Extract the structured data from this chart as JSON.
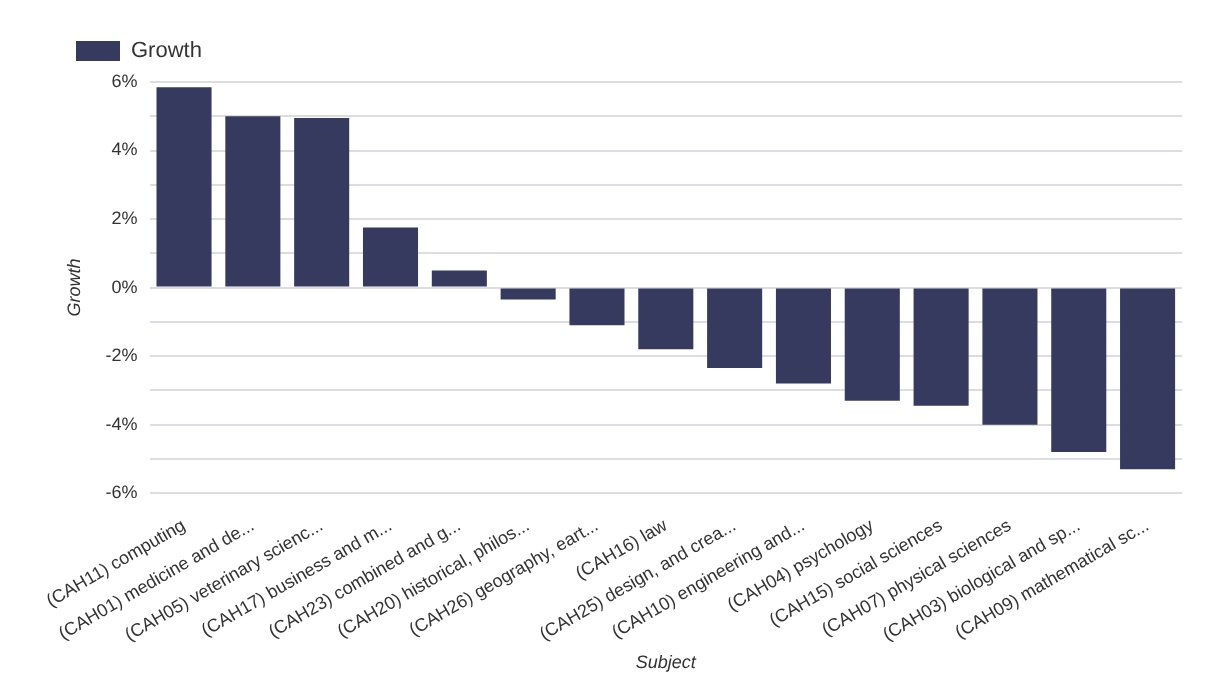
{
  "chart_data": {
    "type": "bar",
    "xlabel": "Subject",
    "ylabel": "Growth",
    "categories": [
      "(CAH11) computing",
      "(CAH01) medicine and de...",
      "(CAH05) veterinary scienc...",
      "(CAH17) business and m...",
      "(CAH23) combined and g...",
      "(CAH20) historical, philos...",
      "(CAH26) geography, eart...",
      "(CAH16) law",
      "(CAH25) design, and crea...",
      "(CAH10) engineering and...",
      "(CAH04) psychology",
      "(CAH15) social sciences",
      "(CAH07) physical sciences",
      "(CAH03) biological and sp...",
      "(CAH09) mathematical sc..."
    ],
    "series": [
      {
        "name": "Growth",
        "color": "#363a5f",
        "values": [
          5.85,
          5.0,
          4.95,
          1.75,
          0.5,
          -0.35,
          -1.1,
          -1.8,
          -2.35,
          -2.8,
          -3.3,
          -3.45,
          -4.0,
          -4.8,
          -5.3
        ]
      }
    ],
    "ylim": [
      -6,
      6
    ],
    "yticks": [
      {
        "value": -6,
        "label": "-6%"
      },
      {
        "value": -5,
        "label": null
      },
      {
        "value": -4,
        "label": "-4%"
      },
      {
        "value": -3,
        "label": null
      },
      {
        "value": -2,
        "label": "-2%"
      },
      {
        "value": -1,
        "label": null
      },
      {
        "value": 0,
        "label": "0%"
      },
      {
        "value": 1,
        "label": null
      },
      {
        "value": 2,
        "label": "2%"
      },
      {
        "value": 3,
        "label": null
      },
      {
        "value": 4,
        "label": "4%"
      },
      {
        "value": 5,
        "label": null
      },
      {
        "value": 6,
        "label": "6%"
      }
    ],
    "grid": "y",
    "legend": "top left"
  }
}
